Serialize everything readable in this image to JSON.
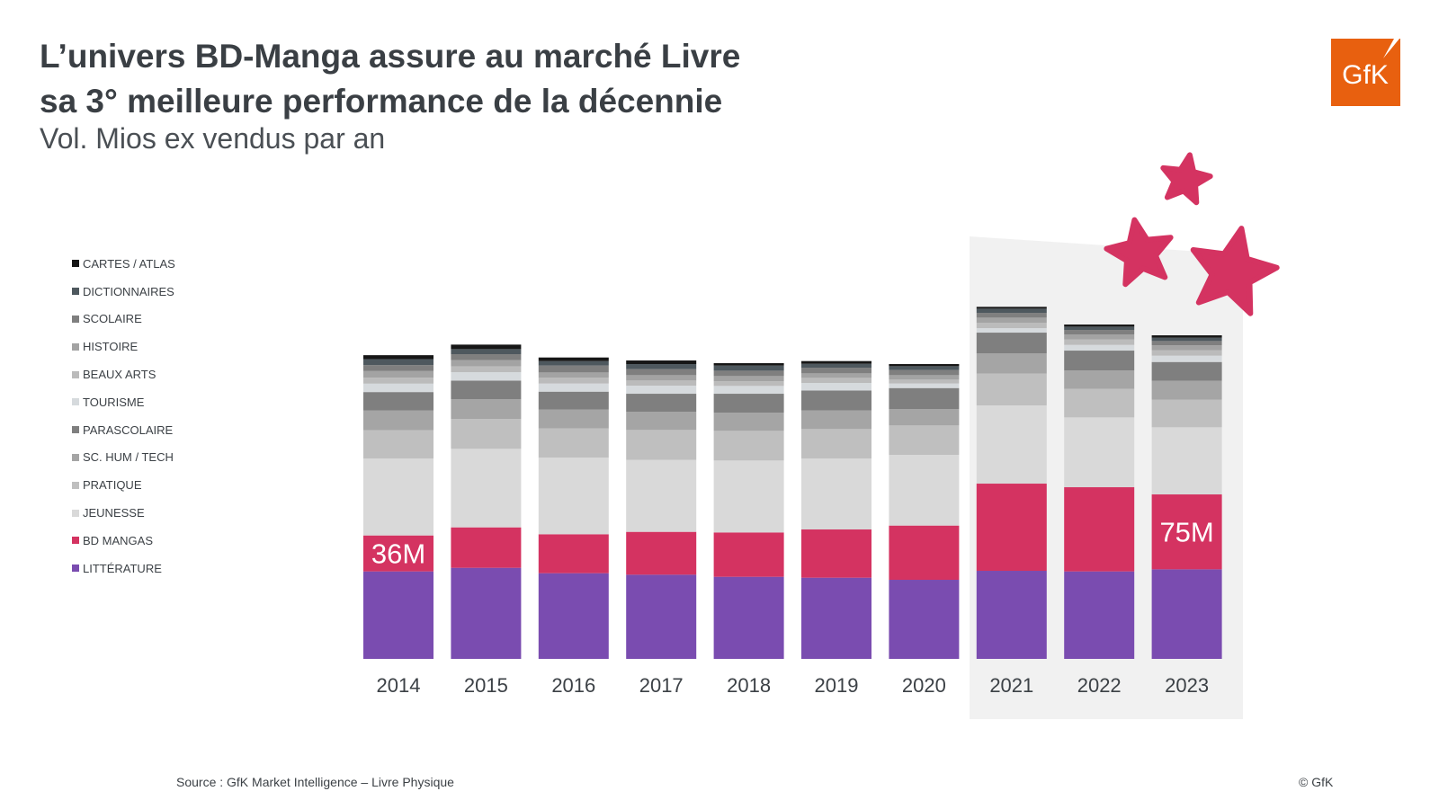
{
  "header": {
    "title_line1": "L’univers BD-Manga assure au marché Livre",
    "title_line2": "sa 3° meilleure performance de la décennie",
    "subtitle": "Vol. Mios ex vendus par an"
  },
  "logo": {
    "text": "GfK",
    "color": "#e8600f"
  },
  "footer": {
    "source": "Source : GfK Market Intelligence – Livre Physique",
    "copyright": "© GfK"
  },
  "colors": {
    "highlight_panel": "#f1f1f1",
    "stars": "#d43361"
  },
  "chart_data": {
    "type": "bar",
    "stacked": true,
    "categories": [
      "2014",
      "2015",
      "2016",
      "2017",
      "2018",
      "2019",
      "2020",
      "2021",
      "2022",
      "2023"
    ],
    "highlighted_categories": [
      "2021",
      "2022",
      "2023"
    ],
    "legend_position": "left",
    "grid": false,
    "unit": "M",
    "series": [
      {
        "name": "LITTÉRATURE",
        "color": "#7a4cb0",
        "values": [
          87.6,
          91.2,
          85.8,
          84.3,
          82.2,
          81.3,
          79.2,
          88.2,
          87.6,
          89.7
        ]
      },
      {
        "name": "BD MANGAS",
        "color": "#d43361",
        "values": [
          36,
          40.5,
          39,
          42.9,
          44.4,
          48.3,
          54.3,
          87.3,
          84.3,
          75
        ]
      },
      {
        "name": "JEUNESSE",
        "color": "#d9d9d9",
        "values": [
          77,
          78.6,
          76.8,
          72,
          72,
          71.1,
          70.8,
          78.3,
          69.9,
          67.2
        ]
      },
      {
        "name": "PRATIQUE",
        "color": "#bfbfbf",
        "values": [
          28.5,
          30,
          29.1,
          30,
          29.7,
          29.4,
          29.4,
          31.8,
          28.5,
          27.6
        ]
      },
      {
        "name": "SC. HUM / TECH",
        "color": "#a5a5a5",
        "values": [
          19.5,
          19.8,
          18.9,
          18.3,
          18.3,
          18.6,
          16.5,
          20.4,
          18.6,
          18.9
        ]
      },
      {
        "name": "PARASCOLAIRE",
        "color": "#7f7f7f",
        "values": [
          18.6,
          18.6,
          18,
          18,
          18.9,
          20.1,
          21,
          20.7,
          19.8,
          18.9
        ]
      },
      {
        "name": "TOURISME",
        "color": "#d6dadd",
        "values": [
          8.4,
          8.4,
          8.1,
          8.1,
          7.8,
          7.5,
          4.5,
          4.5,
          5.7,
          6.3
        ]
      },
      {
        "name": "BEAUX ARTS",
        "color": "#bbbbbb",
        "values": [
          6,
          5.7,
          6,
          5.1,
          4.8,
          5.1,
          3.9,
          5.4,
          5.4,
          5.4
        ]
      },
      {
        "name": "HISTOIRE",
        "color": "#a3a3a3",
        "values": [
          6.6,
          6.3,
          5.1,
          5.4,
          5.1,
          4.5,
          4.5,
          5.1,
          5.1,
          5.1
        ]
      },
      {
        "name": "SCOLAIRE",
        "color": "#7f7f7f",
        "values": [
          6,
          6,
          6.9,
          6,
          5.4,
          5.7,
          5.1,
          4.8,
          4.5,
          4.2
        ]
      },
      {
        "name": "DICTIONNAIRES",
        "color": "#4e585e",
        "values": [
          6,
          5.1,
          4.5,
          5.1,
          5.1,
          3.9,
          3.9,
          4.2,
          3.3,
          3.3
        ]
      },
      {
        "name": "CARTES / ATLAS",
        "color": "#161616",
        "values": [
          3.9,
          4.5,
          3.6,
          3.6,
          2.4,
          2.7,
          2.1,
          1.8,
          2.1,
          2.4
        ]
      }
    ],
    "data_labels": [
      {
        "category": "2014",
        "series": "BD MANGAS",
        "text": "36M"
      },
      {
        "category": "2023",
        "series": "BD MANGAS",
        "text": "75M"
      }
    ]
  }
}
